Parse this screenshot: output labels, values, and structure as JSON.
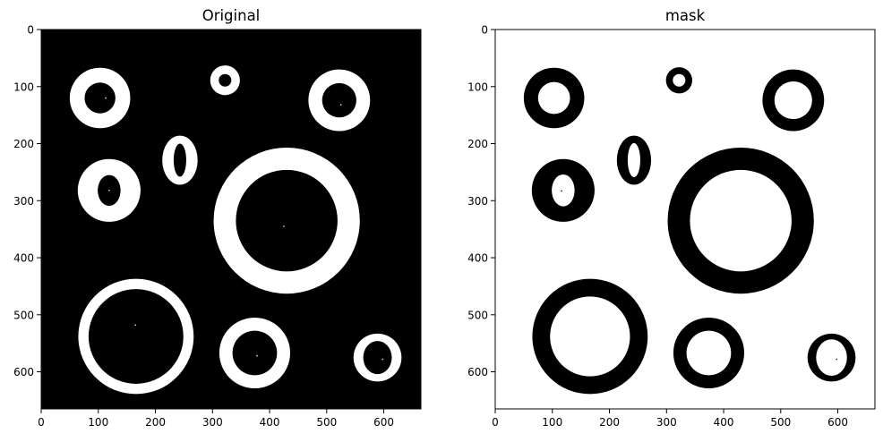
{
  "figure": {
    "panels": [
      {
        "title": "Original"
      },
      {
        "title": "mask"
      }
    ]
  },
  "chart_data": [
    {
      "type": "image",
      "title": "Original",
      "xlabel": "",
      "ylabel": "",
      "xlim": [
        0,
        665
      ],
      "ylim": [
        665,
        0
      ],
      "xticks": [
        0,
        100,
        200,
        300,
        400,
        500,
        600
      ],
      "yticks": [
        0,
        100,
        200,
        300,
        400,
        500,
        600
      ],
      "background": "#000000",
      "foreground": "#ffffff",
      "rings": [
        {
          "cx": 103,
          "cy": 120,
          "ro": 53,
          "ri": 27
        },
        {
          "cx": 322,
          "cy": 89,
          "ro": 26,
          "ri": 11
        },
        {
          "cx": 522,
          "cy": 124,
          "ro": 54,
          "ri": 30
        },
        {
          "cx": 243,
          "cy": 229,
          "rx_o": 31,
          "ry_o": 43,
          "rx_i": 11,
          "ry_i": 29
        },
        {
          "cx": 119,
          "cy": 282,
          "ro": 55,
          "ri": 20,
          "ry_i": 27
        },
        {
          "cx": 430,
          "cy": 335,
          "ro": 128,
          "ri": 89
        },
        {
          "cx": 166,
          "cy": 538,
          "ro": 101,
          "ri": 83
        },
        {
          "cx": 374,
          "cy": 567,
          "ro": 62,
          "ri": 39
        },
        {
          "cx": 589,
          "cy": 575,
          "ro": 42,
          "ri": 25,
          "ry_i": 29
        }
      ],
      "dots": [
        [
          113,
          120
        ],
        [
          525,
          132
        ],
        [
          119,
          282
        ],
        [
          425,
          345
        ],
        [
          165,
          518
        ],
        [
          378,
          572
        ],
        [
          598,
          578
        ]
      ]
    },
    {
      "type": "image",
      "title": "mask",
      "xlabel": "",
      "ylabel": "",
      "xlim": [
        0,
        665
      ],
      "ylim": [
        665,
        0
      ],
      "xticks": [
        0,
        100,
        200,
        300,
        400,
        500,
        600
      ],
      "yticks": [
        0,
        100,
        200,
        300,
        400,
        500,
        600
      ],
      "background": "#ffffff",
      "foreground": "#000000",
      "rings": [
        {
          "cx": 103,
          "cy": 120,
          "ro": 53,
          "ri": 28
        },
        {
          "cx": 322,
          "cy": 89,
          "ro": 23,
          "ri": 11
        },
        {
          "cx": 522,
          "cy": 124,
          "ro": 54,
          "ri": 33
        },
        {
          "cx": 243,
          "cy": 229,
          "rx_o": 30,
          "ry_o": 43,
          "rx_i": 11,
          "ry_i": 30
        },
        {
          "cx": 119,
          "cy": 282,
          "ro": 55,
          "ri": 20,
          "ry_i": 28
        },
        {
          "cx": 430,
          "cy": 335,
          "ro": 128,
          "ri": 89
        },
        {
          "cx": 166,
          "cy": 538,
          "ro": 101,
          "ri": 70
        },
        {
          "cx": 374,
          "cy": 567,
          "ro": 62,
          "ri": 39
        },
        {
          "cx": 589,
          "cy": 575,
          "ro": 42,
          "ri": 27,
          "ry_i": 32
        }
      ],
      "dots": [
        [
          116,
          283
        ],
        [
          598,
          578
        ]
      ]
    }
  ]
}
